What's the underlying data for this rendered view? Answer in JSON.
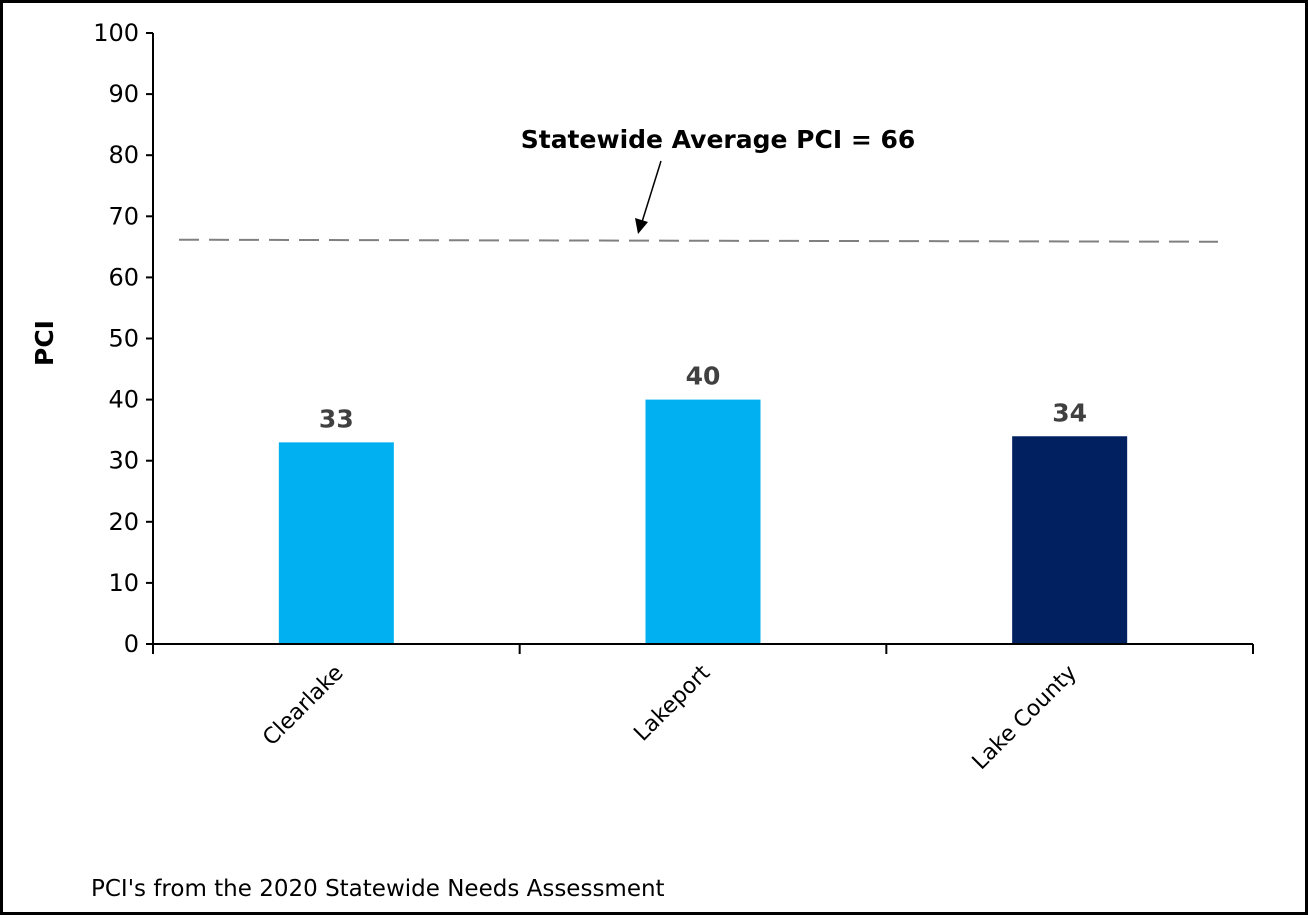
{
  "chart_data": {
    "type": "bar",
    "categories": [
      "Clearlake",
      "Lakeport",
      "Lake County"
    ],
    "values": [
      33,
      40,
      34
    ],
    "bar_colors": [
      "#00b0f0",
      "#00b0f0",
      "#002060"
    ],
    "data_labels": [
      "33",
      "40",
      "34"
    ],
    "ylabel": "PCI",
    "ylim": [
      0,
      100
    ],
    "yticks": [
      0,
      10,
      20,
      30,
      40,
      50,
      60,
      70,
      80,
      90,
      100
    ],
    "ytick_labels": [
      "0",
      "10",
      "20",
      "30",
      "40",
      "50",
      "60",
      "70",
      "80",
      "90",
      "100"
    ],
    "grid": false,
    "legend": "none",
    "reference_line": {
      "value": 66,
      "style": "dashed",
      "color": "#808080",
      "annotation": "Statewide Average PCI = 66"
    },
    "footnote": "PCI's from the 2020 Statewide Needs Assessment"
  }
}
